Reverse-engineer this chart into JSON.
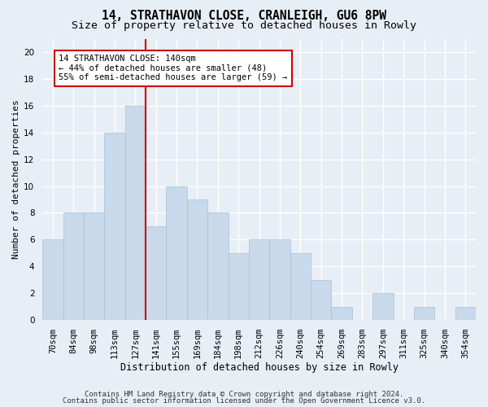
{
  "title1": "14, STRATHAVON CLOSE, CRANLEIGH, GU6 8PW",
  "title2": "Size of property relative to detached houses in Rowly",
  "xlabel": "Distribution of detached houses by size in Rowly",
  "ylabel": "Number of detached properties",
  "categories": [
    "70sqm",
    "84sqm",
    "98sqm",
    "113sqm",
    "127sqm",
    "141sqm",
    "155sqm",
    "169sqm",
    "184sqm",
    "198sqm",
    "212sqm",
    "226sqm",
    "240sqm",
    "254sqm",
    "269sqm",
    "283sqm",
    "297sqm",
    "311sqm",
    "325sqm",
    "340sqm",
    "354sqm"
  ],
  "values": [
    6,
    8,
    8,
    14,
    16,
    7,
    10,
    9,
    8,
    5,
    6,
    6,
    5,
    3,
    1,
    0,
    2,
    0,
    1,
    0,
    1
  ],
  "bar_color": "#c8d9ec",
  "bar_edge_color": "#a8c0d8",
  "highlight_index": 5,
  "highlight_line_color": "#cc0000",
  "annotation_text": "14 STRATHAVON CLOSE: 140sqm\n← 44% of detached houses are smaller (48)\n55% of semi-detached houses are larger (59) →",
  "annotation_box_color": "#ffffff",
  "annotation_box_edge_color": "#cc0000",
  "ylim": [
    0,
    21
  ],
  "yticks": [
    0,
    2,
    4,
    6,
    8,
    10,
    12,
    14,
    16,
    18,
    20
  ],
  "footer1": "Contains HM Land Registry data © Crown copyright and database right 2024.",
  "footer2": "Contains public sector information licensed under the Open Government Licence v3.0.",
  "background_color": "#e8eef5",
  "plot_bg_color": "#e8eef5",
  "grid_color": "#ffffff",
  "title1_fontsize": 10.5,
  "title2_fontsize": 9.5,
  "xlabel_fontsize": 8.5,
  "ylabel_fontsize": 8,
  "tick_fontsize": 7.5,
  "footer_fontsize": 6.5,
  "annotation_fontsize": 7.5
}
